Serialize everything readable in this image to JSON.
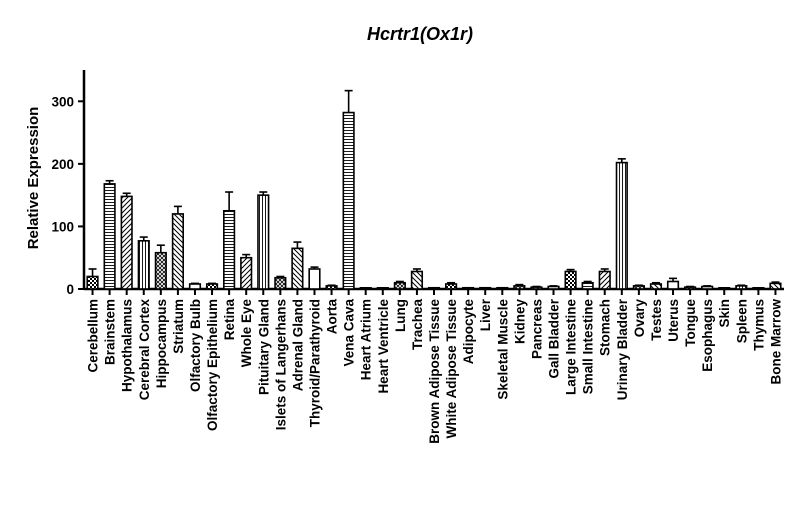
{
  "chart_data": {
    "type": "bar",
    "title": "Hcrtr1(Ox1r)",
    "xlabel": "",
    "ylabel": "Relative Expression",
    "ylim": [
      0,
      350
    ],
    "yticks": [
      0,
      100,
      200,
      300
    ],
    "grid": false,
    "categories": [
      "Cerebellum",
      "Brainstem",
      "Hypothalamus",
      "Cerebral Cortex",
      "Hippocampus",
      "Striatum",
      "Olfactory Bulb",
      "Olfactory Epithelium",
      "Retina",
      "Whole Eye",
      "Pituitary Gland",
      "Islets of Langerhans",
      "Adrenal Gland",
      "Thyroid/Parathyroid",
      "Aorta",
      "Vena Cava",
      "Heart Atrium",
      "Heart Ventricle",
      "Lung",
      "Trachea",
      "Brown Adipose Tissue",
      "White Adipose Tissue",
      "Adipocyte",
      "Liver",
      "Skeletal Muscle",
      "Kidney",
      "Pancreas",
      "Gall Bladder",
      "Large Intestine",
      "Small Intestine",
      "Stomach",
      "Urinary Bladder",
      "Ovary",
      "Testes",
      "Uterus",
      "Tongue",
      "Esophagus",
      "Skin",
      "Spleen",
      "Thymus",
      "Bone Marrow"
    ],
    "values": [
      20,
      168,
      148,
      77,
      58,
      120,
      8,
      8,
      125,
      50,
      150,
      18,
      65,
      32,
      5,
      282,
      1,
      1,
      10,
      28,
      2,
      8,
      2,
      2,
      2,
      5,
      3,
      4,
      28,
      10,
      28,
      202,
      5,
      8,
      12,
      3,
      4,
      1,
      5,
      1,
      9
    ],
    "errors": [
      12,
      5,
      5,
      6,
      12,
      12,
      1,
      1,
      30,
      5,
      5,
      2,
      10,
      3,
      1,
      35,
      0,
      0,
      2,
      4,
      0,
      2,
      0,
      0,
      0,
      2,
      1,
      1,
      3,
      2,
      4,
      6,
      1,
      2,
      5,
      1,
      1,
      0,
      1,
      0,
      2
    ],
    "colors": {
      "bar_stroke": "#000000",
      "bar_fill": "#ffffff"
    }
  }
}
